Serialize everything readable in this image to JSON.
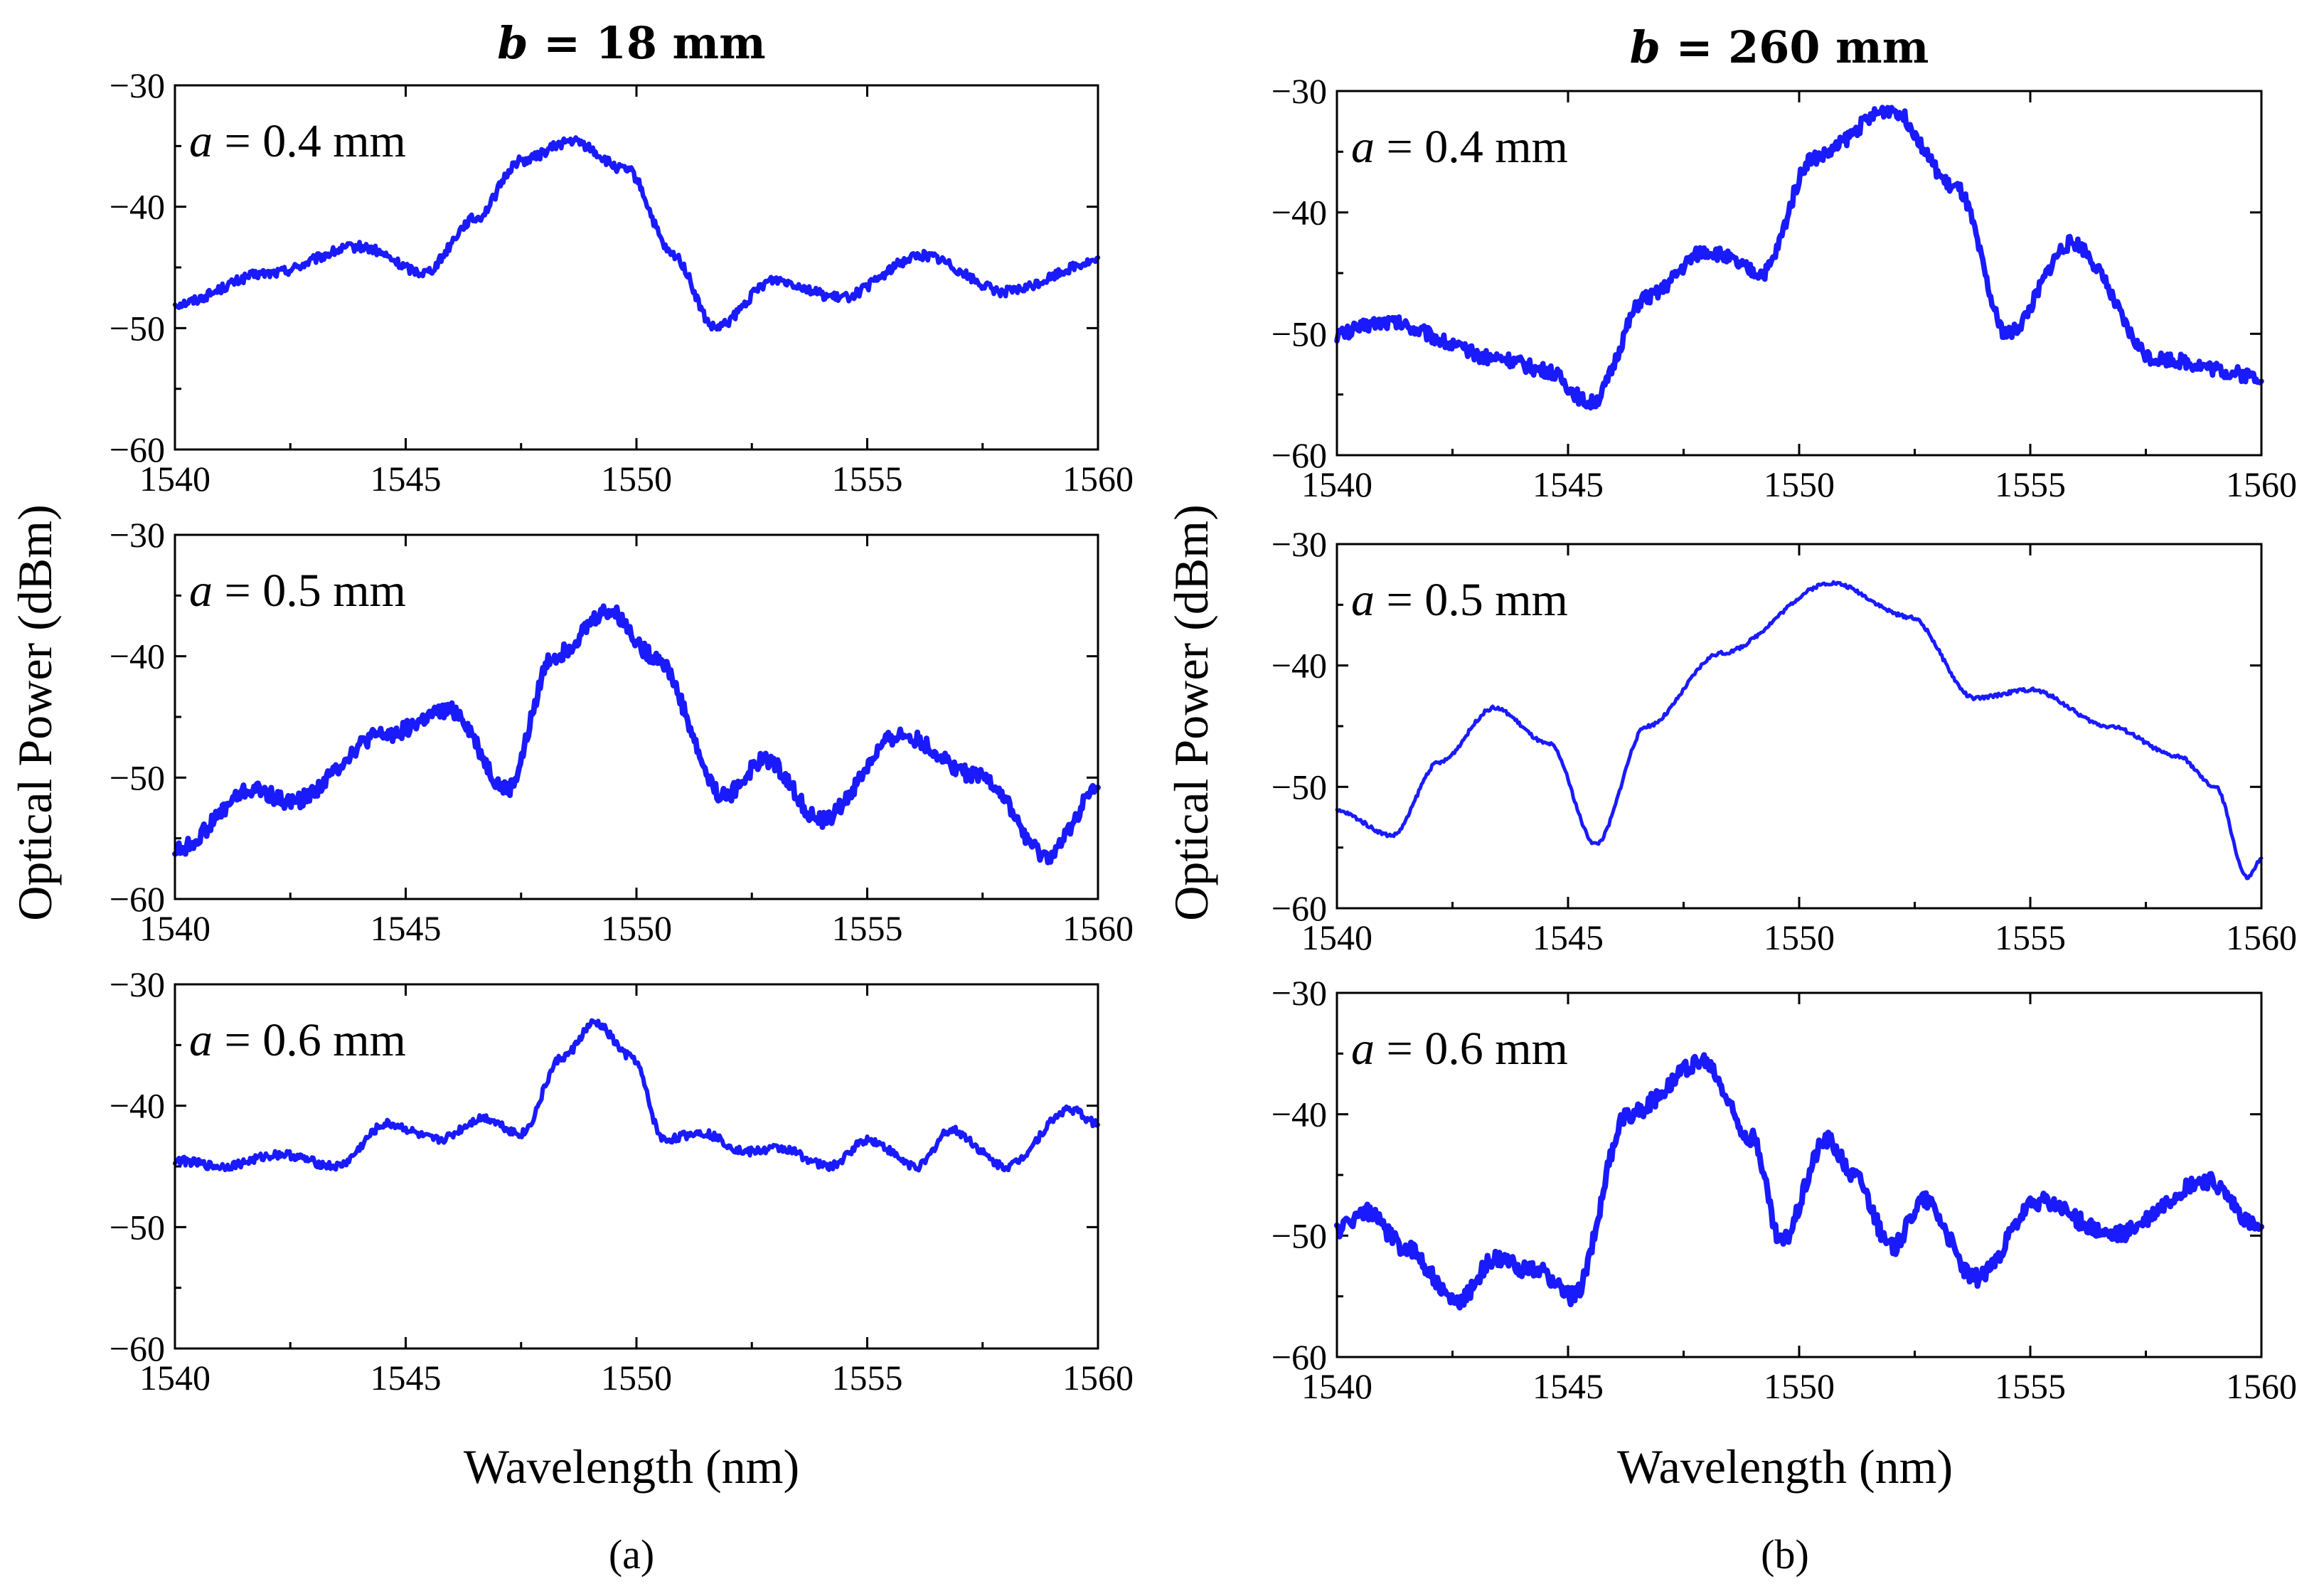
{
  "figure": {
    "column_titles": [
      {
        "var": "b",
        "rest": " = 18 mm"
      },
      {
        "var": "b",
        "rest": " = 260 mm"
      }
    ],
    "captions": [
      "(a)",
      "(b)"
    ],
    "ylabel": "Optical Power (dBm)",
    "xlabel": "Wavelength (nm)",
    "series_color": "#1a1aff"
  },
  "chart_data": [
    {
      "type": "line",
      "panel": "b = 18 mm, a = 0.4 mm",
      "annotation": {
        "var": "a",
        "rest": " = 0.4 mm"
      },
      "xlim": [
        1540,
        1560
      ],
      "ylim": [
        -60,
        -30
      ],
      "xticks": [
        1540,
        1545,
        1550,
        1555,
        1560
      ],
      "xtick_labels": [
        "1540",
        "1545",
        "1550",
        "1555",
        "1560"
      ],
      "yticks": [
        -30,
        -40,
        -50,
        -60
      ],
      "ytick_labels": [
        "−30",
        "−40",
        "−50",
        "−60"
      ],
      "noise": 0.8,
      "x": [
        1540,
        1542,
        1544,
        1545.4,
        1546.5,
        1547.5,
        1548.6,
        1549.8,
        1550.8,
        1551.7,
        1553,
        1554.4,
        1556.2,
        1558,
        1560
      ],
      "y": [
        -48,
        -45.5,
        -43.3,
        -45.4,
        -41,
        -36.2,
        -34.6,
        -37,
        -44,
        -50,
        -46,
        -47.5,
        -44,
        -47,
        -44.5
      ]
    },
    {
      "type": "line",
      "panel": "b = 18 mm, a = 0.5 mm",
      "annotation": {
        "var": "a",
        "rest": " = 0.5 mm"
      },
      "xlim": [
        1540,
        1560
      ],
      "ylim": [
        -60,
        -30
      ],
      "xticks": [
        1540,
        1545,
        1550,
        1555,
        1560
      ],
      "xtick_labels": [
        "1540",
        "1545",
        "1550",
        "1555",
        "1560"
      ],
      "yticks": [
        -30,
        -40,
        -50,
        -60
      ],
      "ytick_labels": [
        "−30",
        "−40",
        "−50",
        "−60"
      ],
      "noise": 1.3,
      "x": [
        1540,
        1541.7,
        1542.5,
        1544.5,
        1546,
        1547.2,
        1548.2,
        1549.4,
        1550.4,
        1551.9,
        1552.8,
        1554,
        1555.7,
        1557.5,
        1558.9,
        1560
      ],
      "y": [
        -56,
        -51,
        -52,
        -46.5,
        -44.5,
        -51,
        -40,
        -36.3,
        -40,
        -51.5,
        -48.5,
        -53.5,
        -46.5,
        -50,
        -56.5,
        -51
      ]
    },
    {
      "type": "line",
      "panel": "b = 18 mm, a = 0.6 mm",
      "annotation": {
        "var": "a",
        "rest": " = 0.6 mm"
      },
      "xlim": [
        1540,
        1560
      ],
      "ylim": [
        -60,
        -30
      ],
      "xticks": [
        1540,
        1545,
        1550,
        1555,
        1560
      ],
      "xtick_labels": [
        "1540",
        "1545",
        "1550",
        "1555",
        "1560"
      ],
      "yticks": [
        -30,
        -40,
        -50,
        -60
      ],
      "ytick_labels": [
        "−30",
        "−40",
        "−50",
        "−60"
      ],
      "noise": 0.7,
      "x": [
        1540,
        1541,
        1542.3,
        1543.5,
        1544.6,
        1545.7,
        1546.7,
        1547.5,
        1548.4,
        1549.1,
        1549.9,
        1550.6,
        1551.4,
        1552.4,
        1553.1,
        1554.2,
        1555,
        1556.1,
        1556.8,
        1558,
        1559.4,
        1560
      ],
      "y": [
        -44.5,
        -45,
        -44,
        -45,
        -41.5,
        -42.8,
        -41,
        -42.3,
        -36,
        -33.2,
        -36,
        -42.8,
        -42.2,
        -43.8,
        -43.5,
        -45,
        -42.8,
        -45,
        -42,
        -45,
        -40.3,
        -41.5
      ]
    },
    {
      "type": "line",
      "panel": "b = 260 mm, a = 0.4 mm",
      "annotation": {
        "var": "a",
        "rest": " = 0.4 mm"
      },
      "xlim": [
        1540,
        1560
      ],
      "ylim": [
        -60,
        -30
      ],
      "xticks": [
        1540,
        1545,
        1550,
        1555,
        1560
      ],
      "xtick_labels": [
        "1540",
        "1545",
        "1550",
        "1555",
        "1560"
      ],
      "yticks": [
        -30,
        -40,
        -50,
        -60
      ],
      "ytick_labels": [
        "−30",
        "−40",
        "−50",
        "−60"
      ],
      "noise": 1.2,
      "x": [
        1540,
        1541,
        1543.5,
        1544.5,
        1545.5,
        1546.7,
        1548,
        1549.2,
        1550.3,
        1552,
        1553.4,
        1554.5,
        1555.9,
        1557.7,
        1560
      ],
      "y": [
        -50,
        -49,
        -52,
        -53,
        -55.7,
        -47,
        -43.2,
        -45,
        -35.5,
        -31.5,
        -38,
        -50,
        -42.5,
        -52,
        -53.5
      ]
    },
    {
      "type": "line",
      "panel": "b = 260 mm, a = 0.5 mm",
      "annotation": {
        "var": "a",
        "rest": " = 0.5 mm"
      },
      "xlim": [
        1540,
        1560
      ],
      "ylim": [
        -60,
        -30
      ],
      "xticks": [
        1540,
        1545,
        1550,
        1555,
        1560
      ],
      "xtick_labels": [
        "1540",
        "1545",
        "1550",
        "1555",
        "1560"
      ],
      "yticks": [
        -30,
        -40,
        -50,
        -60
      ],
      "ytick_labels": [
        "−30",
        "−40",
        "−50",
        "−60"
      ],
      "noise": 0.3,
      "x": [
        1540,
        1541.2,
        1542.2,
        1543.4,
        1544.6,
        1545.6,
        1546.7,
        1548.3,
        1550.7,
        1552.4,
        1553.8,
        1555,
        1556.7,
        1558.2,
        1559,
        1559.7,
        1560
      ],
      "y": [
        -52,
        -54,
        -48,
        -43.5,
        -46.5,
        -54.7,
        -45,
        -39,
        -33.2,
        -36,
        -42.7,
        -42,
        -45,
        -47.5,
        -50,
        -57.5,
        -56
      ]
    },
    {
      "type": "line",
      "panel": "b = 260 mm, a = 0.6 mm",
      "annotation": {
        "var": "a",
        "rest": " = 0.6 mm"
      },
      "xlim": [
        1540,
        1560
      ],
      "ylim": [
        -60,
        -30
      ],
      "xticks": [
        1540,
        1545,
        1550,
        1555,
        1560
      ],
      "xtick_labels": [
        "1540",
        "1545",
        "1550",
        "1555",
        "1560"
      ],
      "yticks": [
        -30,
        -40,
        -50,
        -60
      ],
      "ytick_labels": [
        "−30",
        "−40",
        "−50",
        "−60"
      ],
      "noise": 1.4,
      "x": [
        1540,
        1540.6,
        1541.5,
        1542.6,
        1543.4,
        1544.4,
        1545.1,
        1546.3,
        1547.9,
        1549,
        1549.6,
        1550.6,
        1551.2,
        1552,
        1552.7,
        1553.8,
        1555.2,
        1556.8,
        1558.8,
        1560
      ],
      "y": [
        -49.5,
        -48,
        -51,
        -55.5,
        -52,
        -53,
        -55,
        -40,
        -35.7,
        -42,
        -50.5,
        -42,
        -45,
        -51,
        -47,
        -53.5,
        -47.2,
        -50,
        -45.5,
        -49.5
      ]
    }
  ]
}
